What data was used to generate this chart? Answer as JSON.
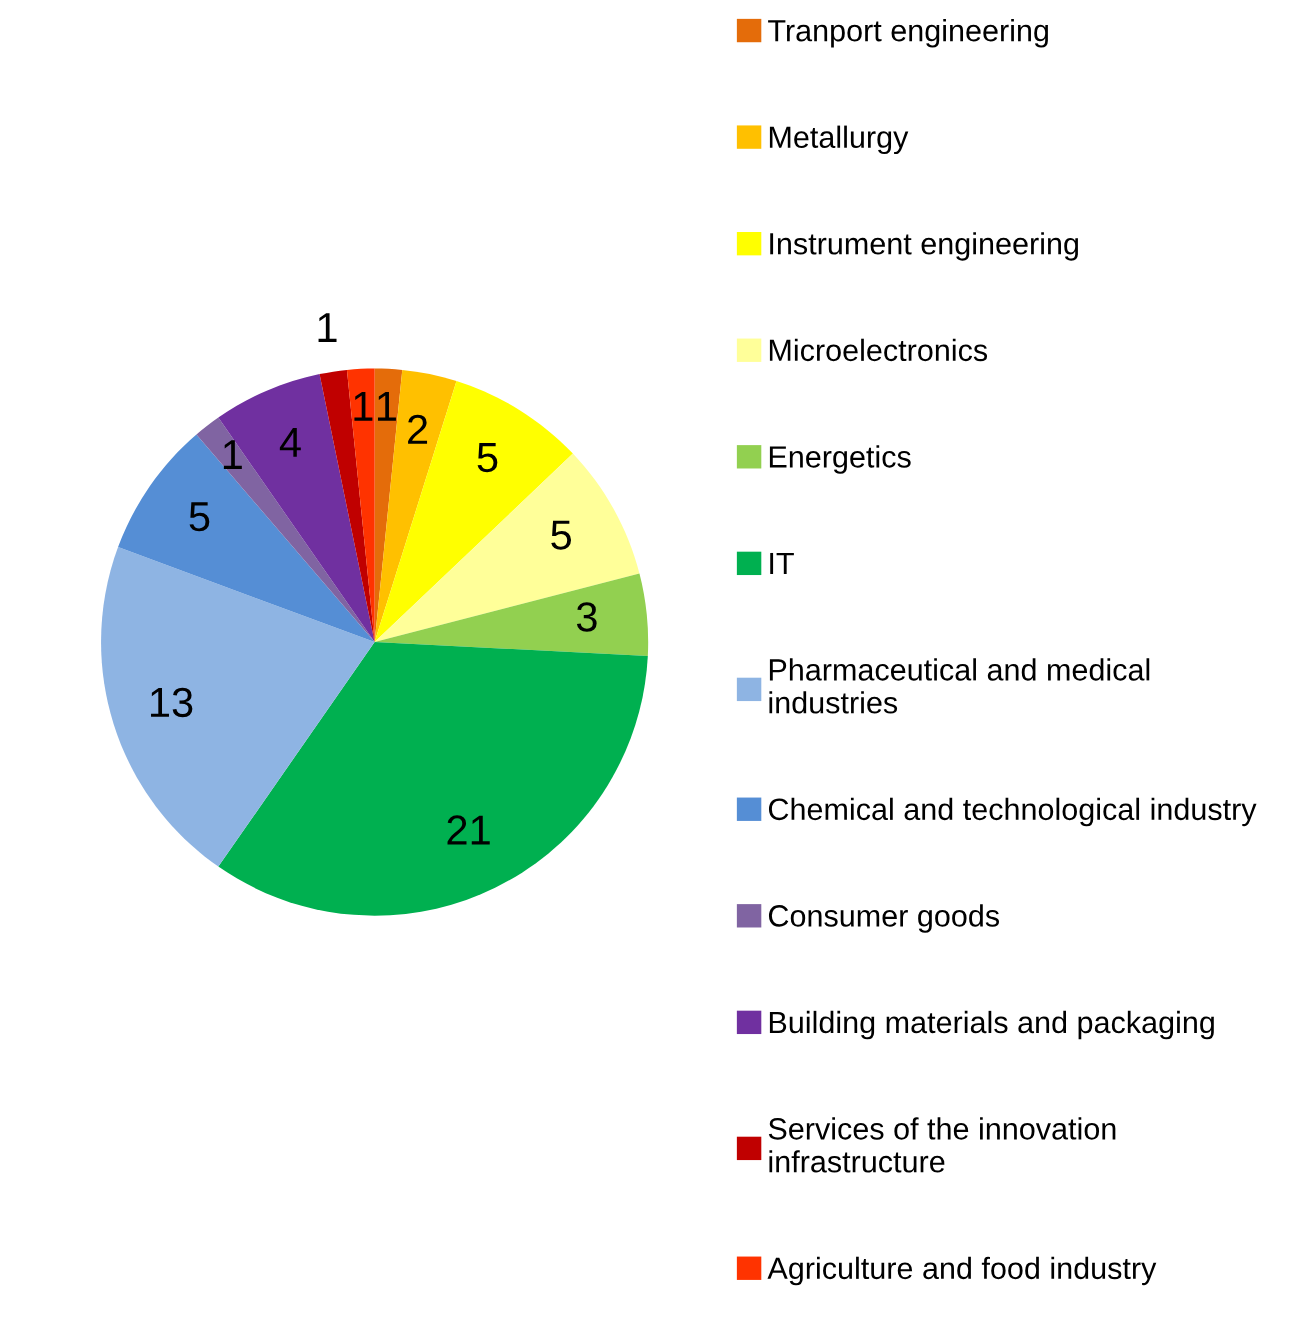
{
  "chart_data": {
    "type": "pie",
    "categories": [
      "Tranport engineering",
      "Metallurgy",
      "Instrument engineering",
      "Microelectronics",
      "Energetics",
      "IT",
      "Pharmaceutical and medical\nindustries",
      "Chemical and technological industry",
      "Consumer goods",
      "Building materials and packaging",
      "Services of the innovation\ninfrastructure",
      "Agriculture and food industry"
    ],
    "values": [
      1,
      2,
      5,
      5,
      3,
      21,
      13,
      5,
      1,
      4,
      1,
      1
    ],
    "colors": [
      "#e46c0a",
      "#ffc000",
      "#ffff00",
      "#ffff99",
      "#92d050",
      "#00b050",
      "#8eb4e3",
      "#558ed5",
      "#8064a2",
      "#7030a0",
      "#c00000",
      "#ff3300"
    ],
    "data_labels": true,
    "legend": "right"
  }
}
